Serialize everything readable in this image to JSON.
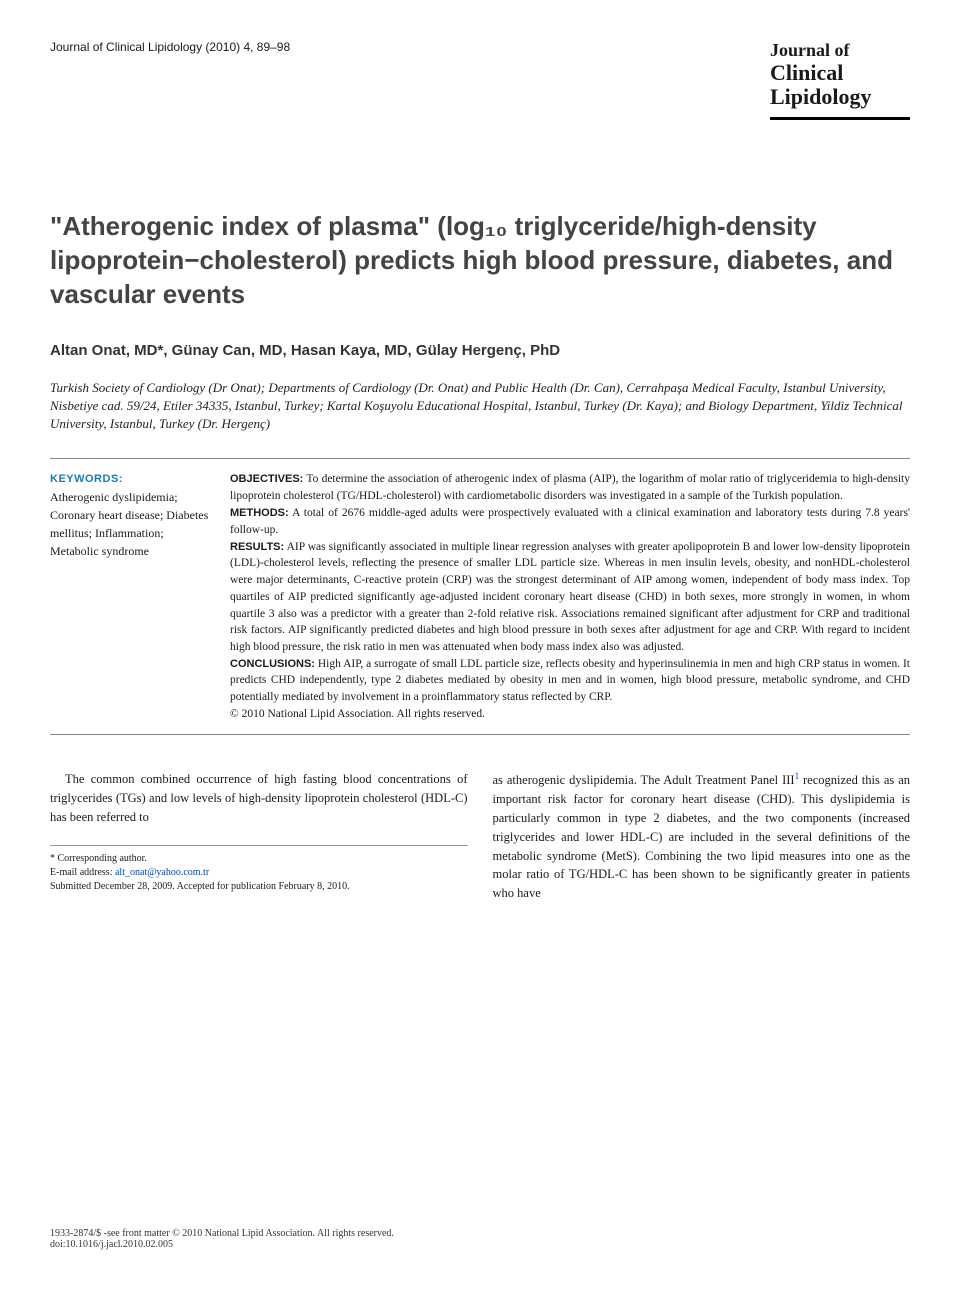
{
  "header": {
    "journal_ref": "Journal of Clinical Lipidology (2010) 4, 89–98",
    "logo_line1": "Journal of",
    "logo_line2": "Clinical",
    "logo_line3": "Lipidology"
  },
  "title": "\"Atherogenic index of plasma\" (log₁₀ triglyceride/high-density lipoprotein−cholesterol) predicts high blood pressure, diabetes, and vascular events",
  "authors": "Altan Onat, MD*, Günay Can, MD, Hasan Kaya, MD, Gülay Hergenç, PhD",
  "affiliations": "Turkish Society of Cardiology (Dr Onat); Departments of Cardiology (Dr. Onat) and Public Health (Dr. Can), Cerrahpaşa Medical Faculty, Istanbul University, Nisbetiye cad. 59/24, Etiler 34335, Istanbul, Turkey; Kartal Koşuyolu Educational Hospital, Istanbul, Turkey (Dr. Kaya); and Biology Department, Yildiz Technical University, Istanbul, Turkey (Dr. Hergenç)",
  "keywords": {
    "heading": "KEYWORDS:",
    "items": "Atherogenic dyslipidemia; Coronary heart disease; Diabetes mellitus; Inflammation; Metabolic syndrome"
  },
  "abstract": {
    "objectives_label": "OBJECTIVES:",
    "objectives": " To determine the association of atherogenic index of plasma (AIP), the logarithm of molar ratio of triglyceridemia to high-density lipoprotein cholesterol (TG/HDL-cholesterol) with cardiometabolic disorders was investigated in a sample of the Turkish population.",
    "methods_label": "METHODS:",
    "methods": " A total of 2676 middle-aged adults were prospectively evaluated with a clinical examination and laboratory tests during 7.8 years' follow-up.",
    "results_label": "RESULTS:",
    "results": " AIP was significantly associated in multiple linear regression analyses with greater apolipoprotein B and lower low-density lipoprotein (LDL)-cholesterol levels, reflecting the presence of smaller LDL particle size. Whereas in men insulin levels, obesity, and nonHDL-cholesterol were major determinants, C-reactive protein (CRP) was the strongest determinant of AIP among women, independent of body mass index. Top quartiles of AIP predicted significantly age-adjusted incident coronary heart disease (CHD) in both sexes, more strongly in women, in whom quartile 3 also was a predictor with a greater than 2-fold relative risk. Associations remained significant after adjustment for CRP and traditional risk factors. AIP significantly predicted diabetes and high blood pressure in both sexes after adjustment for age and CRP. With regard to incident high blood pressure, the risk ratio in men was attenuated when body mass index also was adjusted.",
    "conclusions_label": "CONCLUSIONS:",
    "conclusions": " High AIP, a surrogate of small LDL particle size, reflects obesity and hyperinsulinemia in men and high CRP status in women. It predicts CHD independently, type 2 diabetes mediated by obesity in men and in women, high blood pressure, metabolic syndrome, and CHD potentially mediated by involvement in a proinflammatory status reflected by CRP.",
    "copyright": "© 2010 National Lipid Association. All rights reserved."
  },
  "body": {
    "col1_p1": "The common combined occurrence of high fasting blood concentrations of triglycerides (TGs) and low levels of high-density lipoprotein cholesterol (HDL-C) has been referred to",
    "col2_p1_a": "as atherogenic dyslipidemia. The Adult Treatment Panel III",
    "col2_p1_b": " recognized this as an important risk factor for coronary heart disease (CHD). This dyslipidemia is particularly common in type 2 diabetes, and the two components (increased triglycerides and lower HDL-C) are included in the several definitions of the metabolic syndrome (MetS). Combining the two lipid measures into one as the molar ratio of TG/HDL-C has been shown to be significantly greater in patients who have",
    "ref1": "1"
  },
  "correspondence": {
    "star": "* Corresponding author.",
    "email_label": "E-mail address: ",
    "email": "alt_onat@yahoo.com.tr",
    "submitted": "Submitted December 28, 2009. Accepted for publication February 8, 2010."
  },
  "footer": {
    "issn": "1933-2874/$ -see front matter © 2010 National Lipid Association. All rights reserved.",
    "doi": "doi:10.1016/j.jacl.2010.02.005"
  },
  "colors": {
    "keyword_heading": "#1a7ab8",
    "link": "#0645ad",
    "text": "#1a1a1a",
    "title_gray": "#444444"
  }
}
